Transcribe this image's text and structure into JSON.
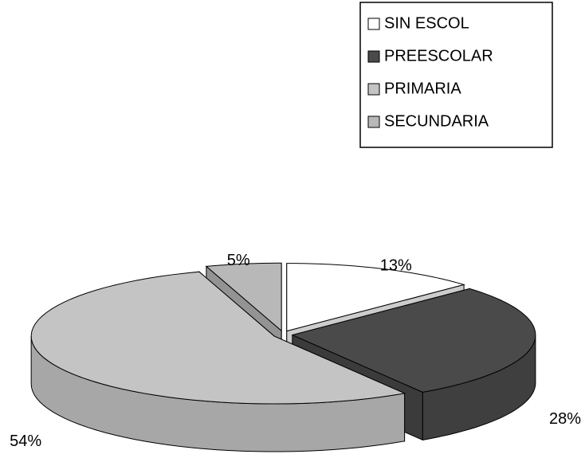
{
  "chart_data": {
    "type": "pie",
    "categories": [
      "SIN ESCOL",
      "PREESCOLAR",
      "PRIMARIA",
      "SECUNDARIA"
    ],
    "values": [
      13,
      28,
      54,
      5
    ],
    "value_labels": [
      "13%",
      "28%",
      "54%",
      "5%"
    ],
    "colors": [
      "#ffffff",
      "#4a4a4a",
      "#c4c4c4",
      "#b8b8b8"
    ],
    "legend": "top-right"
  }
}
